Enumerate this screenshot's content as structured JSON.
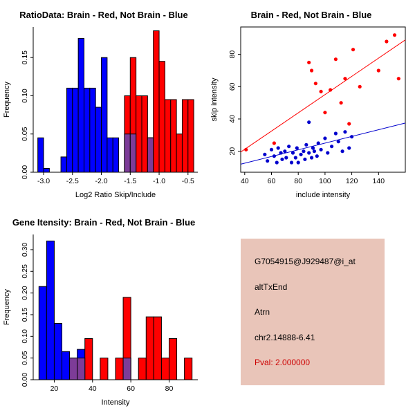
{
  "page": {
    "background": "#FFFFFF"
  },
  "info_box": {
    "bg": "#E9C5B9",
    "lines": [
      "G7054915@J929487@i_at",
      "altTxEnd",
      "Atrn",
      "chr2.14888-6.41"
    ],
    "pval": "Pval: 2.000000",
    "pval_color": "#CC0000",
    "text_color": "#000000"
  },
  "chart_data": [
    {
      "id": "ratio-histogram",
      "type": "bar",
      "title": "RatioData: Brain - Red, Not Brain - Blue",
      "xlabel": "Log2 Ratio Skip/Include",
      "ylabel": "Frequency",
      "frame": "axes",
      "grid": false,
      "legend": "none",
      "xlim": [
        -3.18,
        -0.33
      ],
      "ylim": [
        0,
        0.19
      ],
      "bin_width": 0.1,
      "xticks": [
        -3.0,
        -2.5,
        -2.0,
        -1.5,
        -1.0,
        -0.5
      ],
      "xtick_labels": [
        "-3.0",
        "-2.5",
        "-2.0",
        "-1.5",
        "-1.0",
        "-0.5"
      ],
      "yticks": [
        0,
        0.05,
        0.1,
        0.15
      ],
      "ytick_labels": [
        "0.00",
        "0.05",
        "0.10",
        "0.15"
      ],
      "series": [
        {
          "name": "Not Brain (blue)",
          "color": "#0000FF",
          "bars": [
            {
              "x": -3.1,
              "h": 0.045
            },
            {
              "x": -3.0,
              "h": 0.005
            },
            {
              "x": -2.7,
              "h": 0.02
            },
            {
              "x": -2.6,
              "h": 0.11
            },
            {
              "x": -2.5,
              "h": 0.11
            },
            {
              "x": -2.4,
              "h": 0.175
            },
            {
              "x": -2.3,
              "h": 0.11
            },
            {
              "x": -2.2,
              "h": 0.11
            },
            {
              "x": -2.1,
              "h": 0.085
            },
            {
              "x": -2.0,
              "h": 0.15
            },
            {
              "x": -1.9,
              "h": 0.045
            },
            {
              "x": -1.8,
              "h": 0.045
            },
            {
              "x": -1.6,
              "h": 0.05
            },
            {
              "x": -1.5,
              "h": 0.05
            },
            {
              "x": -1.2,
              "h": 0.045
            }
          ]
        },
        {
          "name": "Brain (red)",
          "color": "#FF0000",
          "bars": [
            {
              "x": -1.6,
              "h": 0.1
            },
            {
              "x": -1.5,
              "h": 0.15
            },
            {
              "x": -1.4,
              "h": 0.1
            },
            {
              "x": -1.3,
              "h": 0.1
            },
            {
              "x": -1.2,
              "h": 0.045
            },
            {
              "x": -1.1,
              "h": 0.185
            },
            {
              "x": -1.0,
              "h": 0.145
            },
            {
              "x": -0.9,
              "h": 0.095
            },
            {
              "x": -0.8,
              "h": 0.095
            },
            {
              "x": -0.7,
              "h": 0.05
            },
            {
              "x": -0.6,
              "h": 0.095
            },
            {
              "x": -0.5,
              "h": 0.095
            }
          ]
        },
        {
          "name": "overlap",
          "color": "#7D3C98",
          "bars": [
            {
              "x": -1.6,
              "h": 0.05
            },
            {
              "x": -1.5,
              "h": 0.05
            },
            {
              "x": -1.2,
              "h": 0.045
            }
          ]
        }
      ]
    },
    {
      "id": "intensity-scatter",
      "type": "scatter",
      "title": "Brain - Red, Not Brain - Blue",
      "xlabel": "include intensity",
      "ylabel": "skip intensity",
      "frame": "box",
      "grid": false,
      "legend": "none",
      "xlim": [
        37,
        160
      ],
      "ylim": [
        7,
        97
      ],
      "xticks": [
        40,
        60,
        80,
        100,
        120,
        140
      ],
      "xtick_labels": [
        "40",
        "60",
        "80",
        "100",
        "120",
        "140"
      ],
      "yticks": [
        20,
        40,
        60,
        80
      ],
      "ytick_labels": [
        "20",
        "40",
        "60",
        "80"
      ],
      "series": [
        {
          "name": "Brain (red)",
          "color": "#FF0000",
          "line": [
            [
              37,
              19.5
            ],
            [
              160,
              89
            ]
          ],
          "points": [
            [
              41,
              21
            ],
            [
              62,
              25
            ],
            [
              88,
              75
            ],
            [
              90,
              70
            ],
            [
              93,
              62
            ],
            [
              97,
              57
            ],
            [
              100,
              44
            ],
            [
              104,
              58
            ],
            [
              108,
              77
            ],
            [
              112,
              50
            ],
            [
              115,
              65
            ],
            [
              118,
              37
            ],
            [
              121,
              83
            ],
            [
              126,
              60
            ],
            [
              140,
              70
            ],
            [
              146,
              88
            ],
            [
              152,
              92
            ],
            [
              155,
              65
            ]
          ]
        },
        {
          "name": "Not Brain (blue)",
          "color": "#0000CD",
          "line": [
            [
              37,
              12
            ],
            [
              160,
              37.5
            ]
          ],
          "points": [
            [
              55,
              18
            ],
            [
              57,
              14
            ],
            [
              60,
              21
            ],
            [
              62,
              17
            ],
            [
              64,
              13
            ],
            [
              65,
              22
            ],
            [
              67,
              19
            ],
            [
              68,
              15
            ],
            [
              70,
              20
            ],
            [
              71,
              16
            ],
            [
              73,
              23
            ],
            [
              75,
              13
            ],
            [
              76,
              19
            ],
            [
              78,
              16
            ],
            [
              79,
              22
            ],
            [
              80,
              13
            ],
            [
              82,
              18
            ],
            [
              84,
              20
            ],
            [
              85,
              15
            ],
            [
              86,
              24
            ],
            [
              88,
              19
            ],
            [
              88,
              38
            ],
            [
              90,
              16
            ],
            [
              91,
              22
            ],
            [
              92,
              20
            ],
            [
              94,
              17
            ],
            [
              95,
              25
            ],
            [
              97,
              21
            ],
            [
              100,
              28
            ],
            [
              102,
              19
            ],
            [
              105,
              23
            ],
            [
              108,
              31
            ],
            [
              110,
              26
            ],
            [
              113,
              20
            ],
            [
              115,
              32
            ],
            [
              118,
              22
            ],
            [
              120,
              29
            ]
          ]
        }
      ]
    },
    {
      "id": "gene-intensity-histogram",
      "type": "bar",
      "title": "Gene Itensity: Brain - Red, Not Brain - Blue",
      "xlabel": "Intensity",
      "ylabel": "Frequency",
      "frame": "axes",
      "grid": false,
      "legend": "none",
      "xlim": [
        9,
        95
      ],
      "ylim": [
        0,
        0.335
      ],
      "bin_width": 4,
      "xticks": [
        20,
        40,
        60,
        80
      ],
      "xtick_labels": [
        "20",
        "40",
        "60",
        "80"
      ],
      "yticks": [
        0,
        0.05,
        0.1,
        0.15,
        0.2,
        0.25,
        0.3
      ],
      "ytick_labels": [
        "0.00",
        "0.05",
        "0.10",
        "0.15",
        "0.20",
        "0.25",
        "0.30"
      ],
      "series": [
        {
          "name": "Not Brain (blue)",
          "color": "#0000FF",
          "bars": [
            {
              "x": 12,
              "h": 0.215
            },
            {
              "x": 16,
              "h": 0.32
            },
            {
              "x": 20,
              "h": 0.13
            },
            {
              "x": 24,
              "h": 0.065
            },
            {
              "x": 28,
              "h": 0.05
            },
            {
              "x": 32,
              "h": 0.07
            },
            {
              "x": 56,
              "h": 0.05
            }
          ]
        },
        {
          "name": "Brain (red)",
          "color": "#FF0000",
          "bars": [
            {
              "x": 36,
              "h": 0.095
            },
            {
              "x": 44,
              "h": 0.05
            },
            {
              "x": 52,
              "h": 0.05
            },
            {
              "x": 56,
              "h": 0.19
            },
            {
              "x": 64,
              "h": 0.05
            },
            {
              "x": 68,
              "h": 0.145
            },
            {
              "x": 72,
              "h": 0.145
            },
            {
              "x": 76,
              "h": 0.05
            },
            {
              "x": 80,
              "h": 0.095
            },
            {
              "x": 88,
              "h": 0.05
            }
          ]
        },
        {
          "name": "overlap",
          "color": "#7D3C98",
          "bars": [
            {
              "x": 28,
              "h": 0.05
            },
            {
              "x": 32,
              "h": 0.05
            },
            {
              "x": 56,
              "h": 0.05
            }
          ]
        }
      ]
    }
  ]
}
